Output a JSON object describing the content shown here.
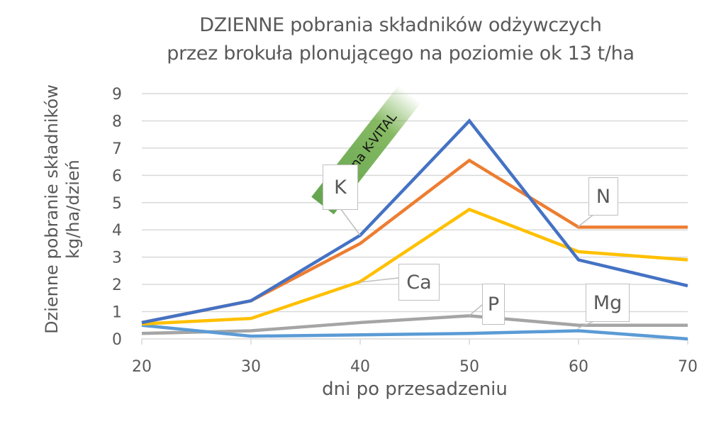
{
  "chart_data": {
    "type": "line",
    "title": "DZIENNE pobrania składników odżywczych przez brokuła plonującego na poziomie ok 13 t/ha",
    "title_lines": [
      "DZIENNE pobrania składników odżywczych",
      "przez brokuła plonującego na poziomie ok 13 t/ha"
    ],
    "xlabel": "dni po przesadzeniu",
    "ylabel_lines": [
      "Dzienne pobranie składników",
      "kg/ha/dzień"
    ],
    "ylabel": "Dzienne pobranie składników kg/ha/dzień",
    "x": [
      20,
      30,
      40,
      50,
      60,
      70
    ],
    "xlim": [
      20,
      70
    ],
    "ylim": [
      0,
      9
    ],
    "x_ticks": [
      "20",
      "30",
      "40",
      "50",
      "60",
      "70"
    ],
    "y_ticks": [
      "0",
      "1",
      "2",
      "3",
      "4",
      "5",
      "6",
      "7",
      "8",
      "9"
    ],
    "grid": true,
    "legend": "none (data callout labels)",
    "series": [
      {
        "name": "K",
        "color": "#4472C4",
        "values": [
          0.6,
          1.4,
          3.8,
          8.0,
          2.9,
          1.95
        ]
      },
      {
        "name": "N",
        "color": "#ED7D31",
        "values": [
          0.6,
          1.4,
          3.5,
          6.55,
          4.1,
          4.1
        ]
      },
      {
        "name": "Ca",
        "color": "#FFC000",
        "values": [
          0.55,
          0.75,
          2.1,
          4.75,
          3.2,
          2.9
        ]
      },
      {
        "name": "P",
        "color": "#A5A5A5",
        "values": [
          0.2,
          0.3,
          0.6,
          0.85,
          0.5,
          0.5
        ]
      },
      {
        "name": "Mg",
        "color": "#5B9BD5",
        "values": [
          0.5,
          0.1,
          0.15,
          0.2,
          0.3,
          0.0
        ]
      }
    ],
    "annotations": [
      {
        "text": "Czas na K-VITAL",
        "near_x": 40,
        "series": "K",
        "style": "green rotated banner"
      }
    ]
  },
  "callouts": {
    "K": "K",
    "N": "N",
    "Ca": "Ca",
    "P": "P",
    "Mg": "Mg"
  },
  "banner": "Czas na K-VITAL"
}
